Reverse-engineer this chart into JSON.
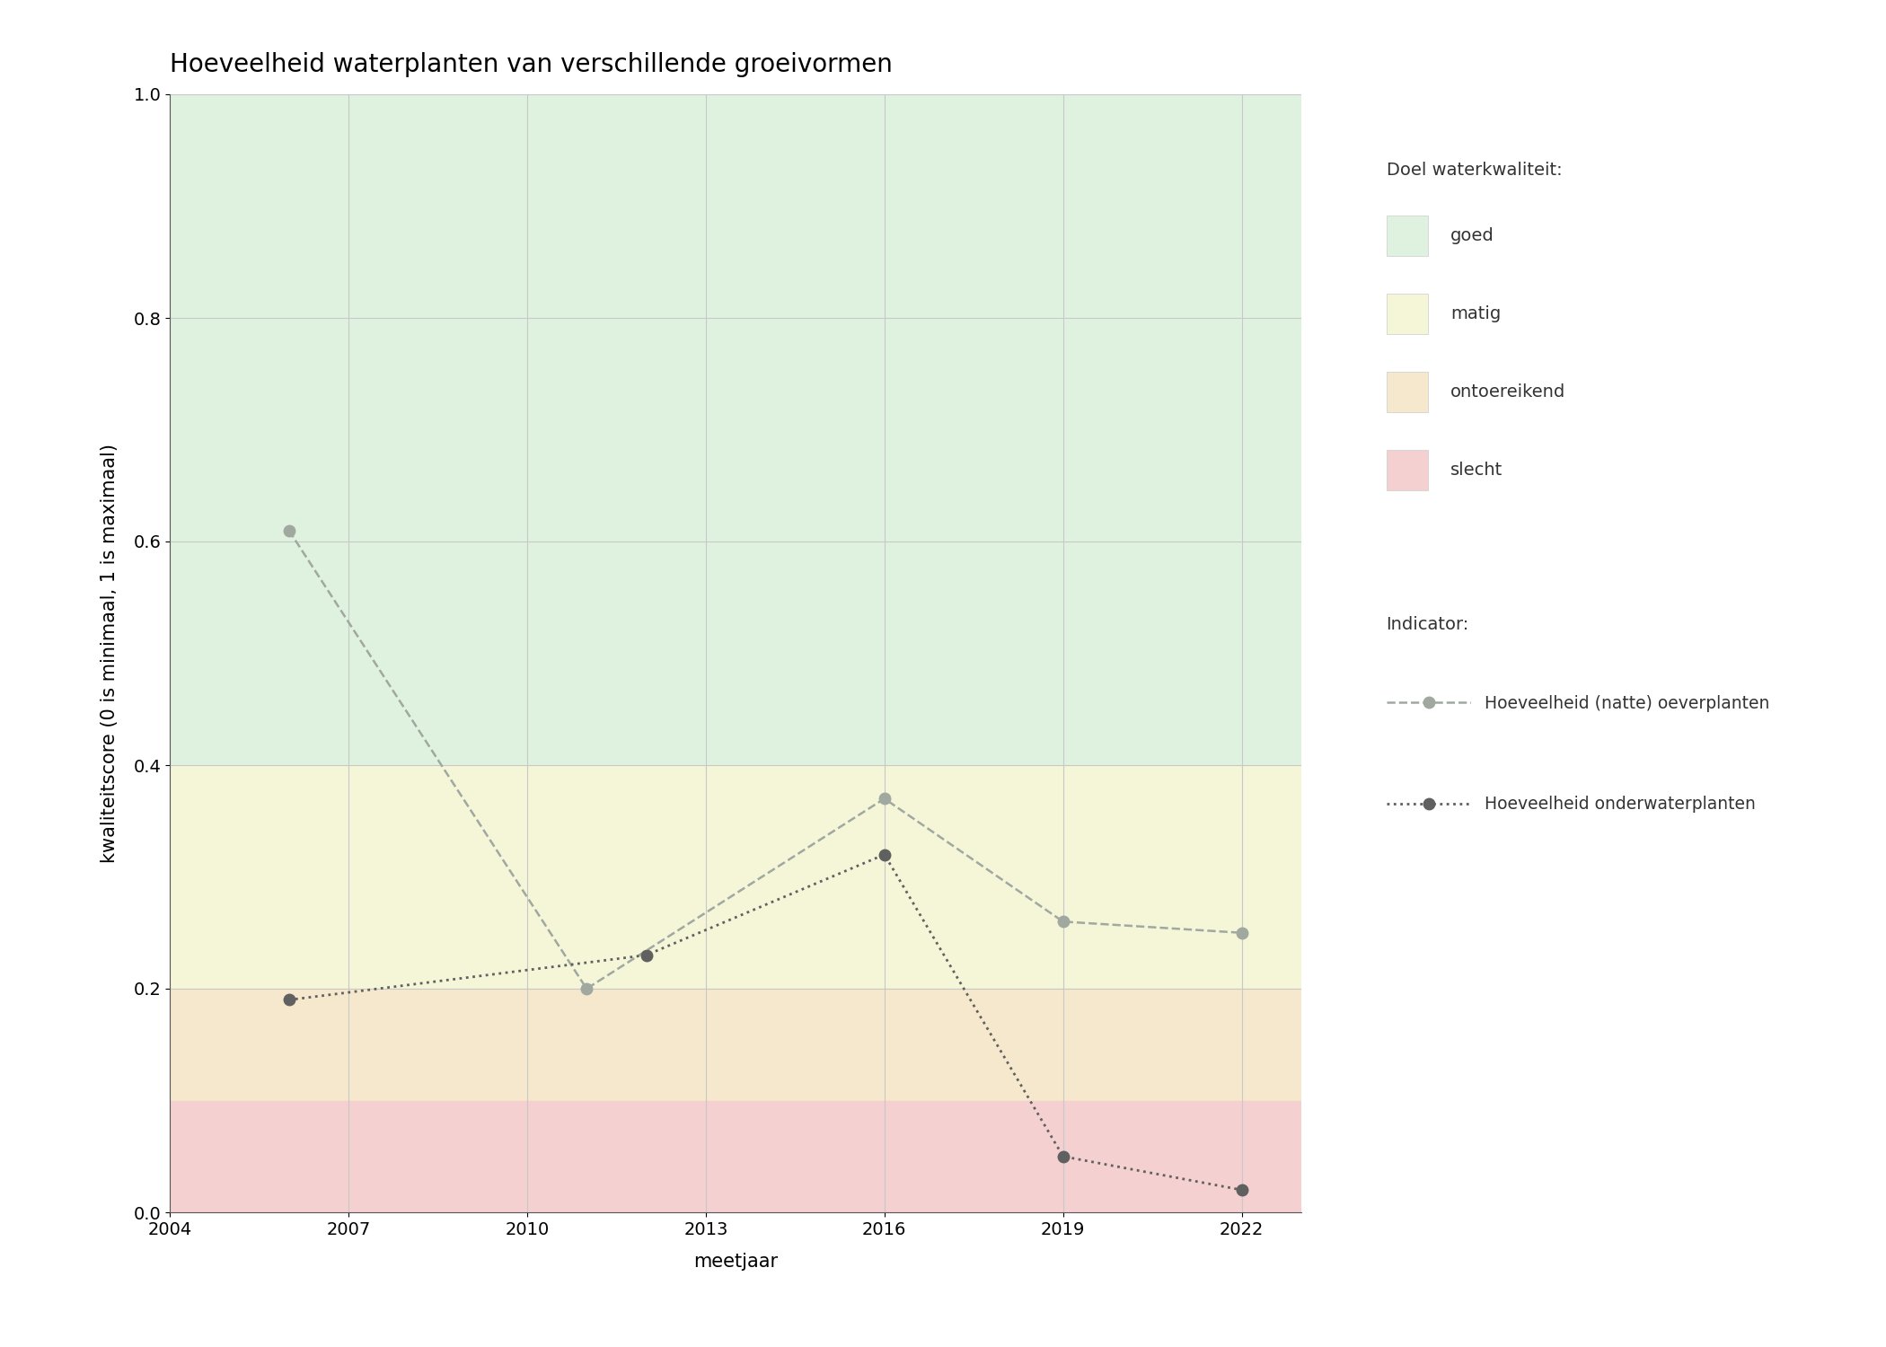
{
  "title": "Hoeveelheid waterplanten van verschillende groeivormen",
  "xlabel": "meetjaar",
  "ylabel": "kwaliteitscore (0 is minimaal, 1 is maximaal)",
  "xlim": [
    2004,
    2023
  ],
  "ylim": [
    0.0,
    1.0
  ],
  "xticks": [
    2004,
    2007,
    2010,
    2013,
    2016,
    2019,
    2022
  ],
  "yticks": [
    0.0,
    0.2,
    0.4,
    0.6,
    0.8,
    1.0
  ],
  "bg_zones": [
    {
      "ymin": 0.4,
      "ymax": 1.0,
      "color": "#dff2df",
      "label": "goed"
    },
    {
      "ymin": 0.2,
      "ymax": 0.4,
      "color": "#f5f5d8",
      "label": "matig"
    },
    {
      "ymin": 0.1,
      "ymax": 0.2,
      "color": "#f5e8cc",
      "label": "ontoereikend"
    },
    {
      "ymin": 0.0,
      "ymax": 0.1,
      "color": "#f5d0d0",
      "label": "slecht"
    }
  ],
  "series": [
    {
      "name": "Hoeveelheid (natte) oeverplanten",
      "x": [
        2006,
        2011,
        2016,
        2019,
        2022
      ],
      "y": [
        0.61,
        0.2,
        0.37,
        0.26,
        0.25
      ],
      "color": "#a0a8a0",
      "linestyle": "dashed",
      "marker": "o",
      "markersize": 9,
      "linewidth": 1.8,
      "zorder": 3
    },
    {
      "name": "Hoeveelheid onderwaterplanten",
      "x": [
        2006,
        2012,
        2016,
        2019,
        2022
      ],
      "y": [
        0.19,
        0.23,
        0.32,
        0.05,
        0.02
      ],
      "color": "#606060",
      "linestyle": "dotted",
      "marker": "o",
      "markersize": 9,
      "linewidth": 2.0,
      "zorder": 4
    }
  ],
  "legend_title_quality": "Doel waterkwaliteit:",
  "legend_title_indicator": "Indicator:",
  "grid_color": "#c8c8c8",
  "background_color": "#ffffff",
  "title_fontsize": 20,
  "label_fontsize": 15,
  "tick_fontsize": 14,
  "legend_fontsize": 14
}
